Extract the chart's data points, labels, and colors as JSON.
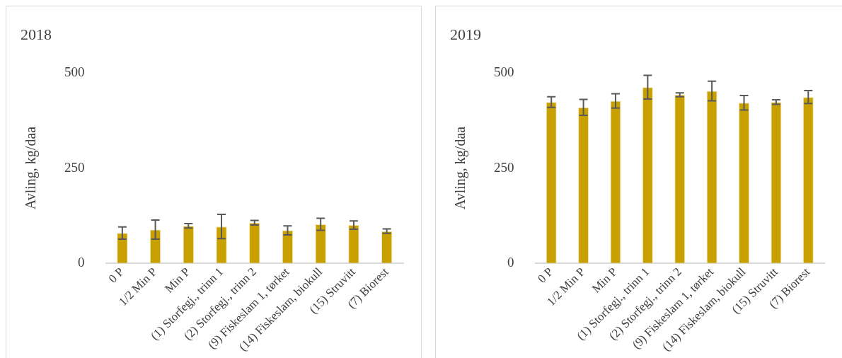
{
  "chart_data": [
    {
      "type": "bar",
      "title": "2018",
      "ylabel": "Avling, kg/daa",
      "categories": [
        "0 P",
        "1/2 Min P",
        "Min P",
        "(1) Storfegj., trinn 1",
        "(2) Storfegj., trinn 2",
        "(9) Fiskeslam 1, tørket",
        "(14) Fiskeslam, biokull",
        "(15) Struvitt",
        "(7) Biorest"
      ],
      "values": [
        79,
        88,
        98,
        96,
        106,
        86,
        102,
        100,
        84
      ],
      "errors": [
        16,
        25,
        6,
        32,
        6,
        12,
        16,
        11,
        6
      ],
      "color": "#c8a000",
      "ylim": [
        0,
        500
      ],
      "yticks": [
        0,
        250,
        500
      ]
    },
    {
      "type": "bar",
      "title": "2019",
      "ylabel": "Avling, kg/daa",
      "categories": [
        "0 P",
        "1/2 Min P",
        "Min P",
        "(1) Storfegj., trinn 1",
        "(2) Storfegj., trinn 2",
        "(9) Fiskeslam 1, tørket",
        "(14) Fiskeslam, biokull",
        "(15) Struvitt",
        "(7) Biorest"
      ],
      "values": [
        424,
        410,
        427,
        463,
        443,
        453,
        422,
        424,
        437
      ],
      "errors": [
        14,
        21,
        19,
        31,
        5,
        26,
        19,
        6,
        17
      ],
      "color": "#c8a000",
      "ylim": [
        0,
        500
      ],
      "yticks": [
        0,
        250,
        500
      ]
    }
  ]
}
